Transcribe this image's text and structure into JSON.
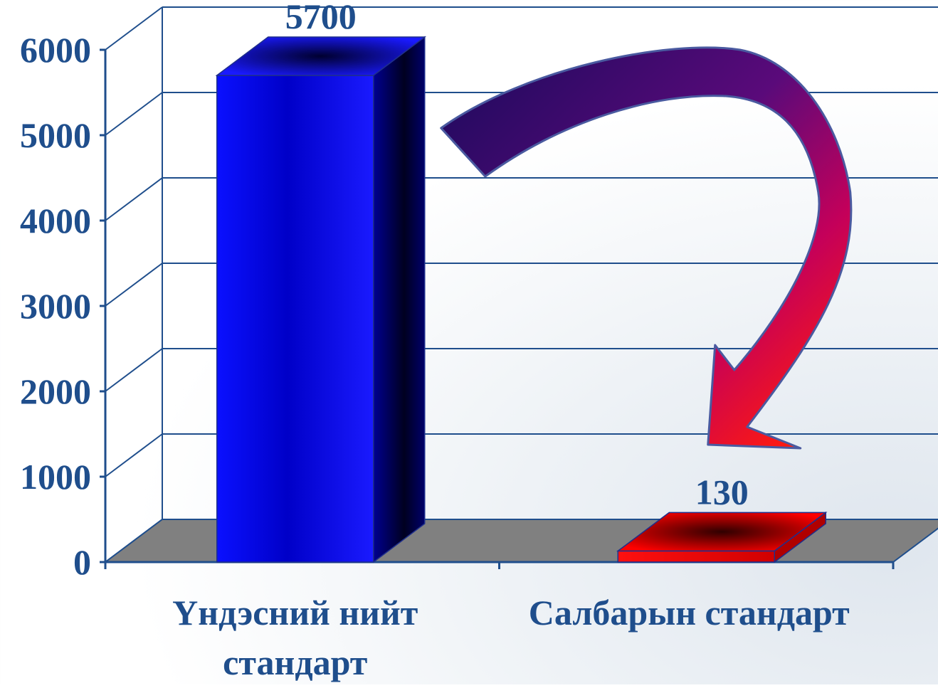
{
  "chart_data": {
    "type": "bar",
    "categories": [
      "Үндэсний нийт стандарт",
      "Салбарын стандарт"
    ],
    "category_lines": [
      [
        "Үндэсний нийт",
        "стандарт"
      ],
      [
        "Салбарын стандарт"
      ]
    ],
    "values": [
      5700,
      130
    ],
    "value_labels": [
      "5700",
      "130"
    ],
    "ylim": [
      0,
      6000
    ],
    "yticks": [
      0,
      1000,
      2000,
      3000,
      4000,
      5000,
      6000
    ],
    "ytick_labels": [
      "0",
      "1000",
      "2000",
      "3000",
      "4000",
      "5000",
      "6000"
    ],
    "grid": true,
    "style": "3d",
    "bar_colors": [
      "#0000ff",
      "#ff0000"
    ],
    "annotation": "curved-arrow-from-first-bar-to-second-bar",
    "colors": {
      "text": "#1f4e8c",
      "grid": "#1f4e8c",
      "floor": "#808080",
      "arrow_start": "#1a0a5c",
      "arrow_end": "#ff2a00"
    }
  }
}
